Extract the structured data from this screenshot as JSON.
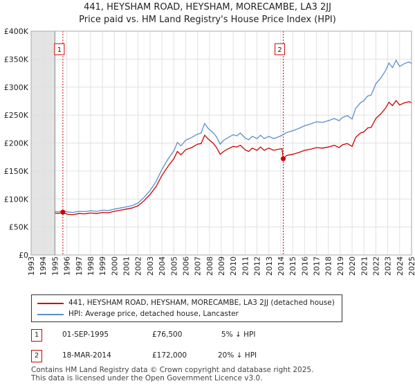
{
  "title": "441, HEYSHAM ROAD, HEYSHAM, MORECAMBE, LA3 2JJ",
  "subtitle": "Price paid vs. HM Land Registry's House Price Index (HPI)",
  "chart_data": {
    "type": "line",
    "x_range": [
      1993,
      2025
    ],
    "ylim": [
      0,
      400000
    ],
    "y_ticks": [
      {
        "value": 0,
        "label": "£0"
      },
      {
        "value": 50000,
        "label": "£50K"
      },
      {
        "value": 100000,
        "label": "£100K"
      },
      {
        "value": 150000,
        "label": "£150K"
      },
      {
        "value": 200000,
        "label": "£200K"
      },
      {
        "value": 250000,
        "label": "£250K"
      },
      {
        "value": 300000,
        "label": "£300K"
      },
      {
        "value": 350000,
        "label": "£350K"
      },
      {
        "value": 400000,
        "label": "£400K"
      }
    ],
    "x_ticks": [
      "1993",
      "1994",
      "1995",
      "1996",
      "1997",
      "1998",
      "1999",
      "2000",
      "2001",
      "2002",
      "2003",
      "2004",
      "2005",
      "2006",
      "2007",
      "2008",
      "2009",
      "2010",
      "2011",
      "2012",
      "2013",
      "2014",
      "2015",
      "2016",
      "2017",
      "2018",
      "2019",
      "2020",
      "2021",
      "2022",
      "2023",
      "2024",
      "2025"
    ],
    "grid": true,
    "shaded_before": 1995.0,
    "series": [
      {
        "name": "441, HEYSHAM ROAD, HEYSHAM, MORECAMBE, LA3 2JJ (detached house)",
        "color": "#cc0000",
        "points": [
          [
            1995.0,
            75000
          ],
          [
            1995.3,
            74000
          ],
          [
            1995.67,
            76500
          ],
          [
            1996.0,
            73000
          ],
          [
            1996.5,
            72000
          ],
          [
            1997.0,
            74000
          ],
          [
            1997.5,
            73500
          ],
          [
            1998.0,
            75000
          ],
          [
            1998.5,
            74000
          ],
          [
            1999.0,
            76000
          ],
          [
            1999.5,
            75500
          ],
          [
            2000.0,
            78000
          ],
          [
            2000.5,
            80000
          ],
          [
            2001.0,
            82000
          ],
          [
            2001.5,
            84000
          ],
          [
            2002.0,
            88000
          ],
          [
            2002.5,
            97000
          ],
          [
            2003.0,
            108000
          ],
          [
            2003.5,
            122000
          ],
          [
            2004.0,
            142000
          ],
          [
            2004.5,
            158000
          ],
          [
            2005.0,
            172000
          ],
          [
            2005.3,
            185000
          ],
          [
            2005.6,
            179000
          ],
          [
            2006.0,
            188000
          ],
          [
            2006.5,
            192000
          ],
          [
            2007.0,
            198000
          ],
          [
            2007.3,
            199000
          ],
          [
            2007.6,
            214000
          ],
          [
            2007.9,
            207000
          ],
          [
            2008.3,
            200000
          ],
          [
            2008.6,
            192000
          ],
          [
            2008.9,
            180000
          ],
          [
            2009.2,
            185000
          ],
          [
            2009.5,
            189000
          ],
          [
            2010.0,
            194000
          ],
          [
            2010.3,
            193000
          ],
          [
            2010.6,
            196000
          ],
          [
            2011.0,
            188000
          ],
          [
            2011.3,
            185000
          ],
          [
            2011.6,
            191000
          ],
          [
            2012.0,
            187000
          ],
          [
            2012.3,
            193000
          ],
          [
            2012.6,
            187000
          ],
          [
            2013.0,
            191000
          ],
          [
            2013.4,
            187000
          ],
          [
            2013.8,
            189000
          ],
          [
            2014.1,
            190000
          ],
          [
            2014.21,
            172000
          ],
          [
            2014.5,
            178000
          ],
          [
            2015.0,
            180000
          ],
          [
            2015.5,
            183000
          ],
          [
            2016.0,
            187000
          ],
          [
            2016.5,
            189000
          ],
          [
            2017.0,
            192000
          ],
          [
            2017.5,
            191000
          ],
          [
            2018.0,
            193000
          ],
          [
            2018.5,
            196000
          ],
          [
            2018.9,
            192000
          ],
          [
            2019.2,
            197000
          ],
          [
            2019.6,
            199000
          ],
          [
            2020.0,
            194000
          ],
          [
            2020.3,
            210000
          ],
          [
            2020.7,
            218000
          ],
          [
            2021.0,
            220000
          ],
          [
            2021.3,
            227000
          ],
          [
            2021.6,
            228000
          ],
          [
            2022.0,
            244000
          ],
          [
            2022.4,
            252000
          ],
          [
            2022.8,
            262000
          ],
          [
            2023.1,
            273000
          ],
          [
            2023.4,
            267000
          ],
          [
            2023.7,
            276000
          ],
          [
            2024.0,
            268000
          ],
          [
            2024.4,
            272000
          ],
          [
            2024.8,
            274000
          ],
          [
            2025.0,
            272000
          ]
        ]
      },
      {
        "name": "HPI: Average price, detached house, Lancaster",
        "color": "#5b8fc7",
        "points": [
          [
            1995.0,
            78000
          ],
          [
            1995.3,
            77000
          ],
          [
            1995.67,
            80000
          ],
          [
            1996.0,
            77000
          ],
          [
            1996.5,
            76000
          ],
          [
            1997.0,
            78000
          ],
          [
            1997.5,
            77500
          ],
          [
            1998.0,
            79000
          ],
          [
            1998.5,
            78000
          ],
          [
            1999.0,
            80000
          ],
          [
            1999.5,
            79500
          ],
          [
            2000.0,
            82000
          ],
          [
            2000.5,
            84000
          ],
          [
            2001.0,
            86000
          ],
          [
            2001.5,
            88000
          ],
          [
            2002.0,
            93000
          ],
          [
            2002.5,
            103000
          ],
          [
            2003.0,
            115000
          ],
          [
            2003.5,
            131000
          ],
          [
            2004.0,
            153000
          ],
          [
            2004.5,
            171000
          ],
          [
            2005.0,
            186000
          ],
          [
            2005.3,
            201000
          ],
          [
            2005.6,
            195000
          ],
          [
            2006.0,
            205000
          ],
          [
            2006.5,
            210000
          ],
          [
            2007.0,
            216000
          ],
          [
            2007.3,
            218000
          ],
          [
            2007.6,
            235000
          ],
          [
            2007.9,
            226000
          ],
          [
            2008.3,
            219000
          ],
          [
            2008.6,
            211000
          ],
          [
            2008.9,
            198000
          ],
          [
            2009.2,
            205000
          ],
          [
            2009.5,
            209000
          ],
          [
            2010.0,
            215000
          ],
          [
            2010.3,
            213000
          ],
          [
            2010.6,
            218000
          ],
          [
            2011.0,
            209000
          ],
          [
            2011.3,
            206000
          ],
          [
            2011.6,
            212000
          ],
          [
            2012.0,
            208000
          ],
          [
            2012.3,
            214000
          ],
          [
            2012.6,
            208000
          ],
          [
            2013.0,
            212000
          ],
          [
            2013.4,
            208000
          ],
          [
            2013.8,
            211000
          ],
          [
            2014.21,
            215000
          ],
          [
            2014.5,
            219000
          ],
          [
            2015.0,
            222000
          ],
          [
            2015.5,
            226000
          ],
          [
            2016.0,
            231000
          ],
          [
            2016.5,
            234000
          ],
          [
            2017.0,
            238000
          ],
          [
            2017.5,
            237000
          ],
          [
            2018.0,
            240000
          ],
          [
            2018.5,
            244000
          ],
          [
            2018.9,
            240000
          ],
          [
            2019.2,
            246000
          ],
          [
            2019.6,
            249000
          ],
          [
            2020.0,
            243000
          ],
          [
            2020.3,
            262000
          ],
          [
            2020.7,
            272000
          ],
          [
            2021.0,
            276000
          ],
          [
            2021.3,
            284000
          ],
          [
            2021.6,
            286000
          ],
          [
            2022.0,
            306000
          ],
          [
            2022.4,
            316000
          ],
          [
            2022.8,
            329000
          ],
          [
            2023.1,
            343000
          ],
          [
            2023.4,
            335000
          ],
          [
            2023.7,
            348000
          ],
          [
            2024.0,
            337000
          ],
          [
            2024.4,
            342000
          ],
          [
            2024.8,
            345000
          ],
          [
            2025.0,
            342000
          ]
        ]
      }
    ],
    "transactions": [
      {
        "id": "1",
        "x": 1995.67,
        "price": 76500
      },
      {
        "id": "2",
        "x": 2014.21,
        "price": 172000
      }
    ]
  },
  "legend": {
    "items": [
      {
        "label": "441, HEYSHAM ROAD, HEYSHAM, MORECAMBE, LA3 2JJ (detached house)",
        "color": "#cc0000"
      },
      {
        "label": "HPI: Average price, detached house, Lancaster",
        "color": "#5b8fc7"
      }
    ]
  },
  "table": {
    "rows": [
      {
        "id": "1",
        "date": "01-SEP-1995",
        "price": "£76,500",
        "hpi": "5% ↓ HPI"
      },
      {
        "id": "2",
        "date": "18-MAR-2014",
        "price": "£172,000",
        "hpi": "20% ↓ HPI"
      }
    ]
  },
  "footer": {
    "line1": "Contains HM Land Registry data © Crown copyright and database right 2025.",
    "line2": "This data is licensed under the Open Government Licence v3.0."
  }
}
